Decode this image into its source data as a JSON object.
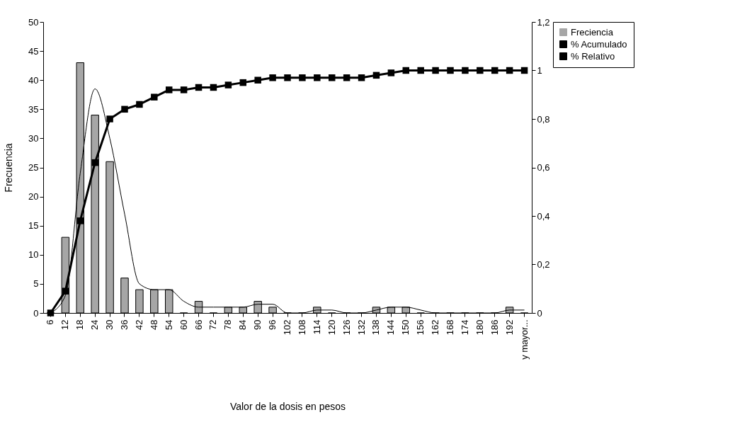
{
  "chart_data": {
    "type": "bar",
    "xlabel": "Valor de la dosis en pesos",
    "ylabel": "Frecuencia",
    "categories": [
      "6",
      "12",
      "18",
      "24",
      "30",
      "36",
      "42",
      "48",
      "54",
      "60",
      "66",
      "72",
      "78",
      "84",
      "90",
      "96",
      "102",
      "108",
      "114",
      "120",
      "126",
      "132",
      "138",
      "144",
      "150",
      "156",
      "162",
      "168",
      "174",
      "180",
      "186",
      "192",
      "y mayor..."
    ],
    "series": [
      {
        "name": "Freciencia",
        "color": "#a6a6a6",
        "values": [
          0,
          13,
          43,
          34,
          26,
          6,
          4,
          4,
          4,
          0,
          2,
          0,
          1,
          1,
          2,
          1,
          0,
          0,
          1,
          0,
          0,
          0,
          1,
          1,
          1,
          0,
          0,
          0,
          0,
          0,
          0,
          1,
          0
        ]
      },
      {
        "name": "% Acumulado",
        "type": "line",
        "axis": "y2",
        "marker": "square",
        "color": "#000000",
        "values": [
          0,
          0.09,
          0.38,
          0.62,
          0.8,
          0.84,
          0.86,
          0.89,
          0.92,
          0.92,
          0.93,
          0.93,
          0.94,
          0.95,
          0.96,
          0.97,
          0.97,
          0.97,
          0.97,
          0.97,
          0.97,
          0.97,
          0.98,
          0.99,
          1,
          1,
          1,
          1,
          1,
          1,
          1,
          1,
          1
        ]
      },
      {
        "name": "% Relativo",
        "type": "line",
        "marker": "none",
        "color": "#000000",
        "values": [
          0,
          3,
          24,
          38.5,
          30,
          17,
          5,
          4,
          4,
          2,
          1,
          1,
          1,
          1,
          1.5,
          1.5,
          0,
          0,
          0.5,
          0.5,
          0,
          0,
          0.5,
          1,
          1,
          0.5,
          0,
          0,
          0,
          0,
          0,
          0.5,
          0.5
        ]
      }
    ],
    "ylim": [
      0,
      50
    ],
    "yticks": [
      0,
      5,
      10,
      15,
      20,
      25,
      30,
      35,
      40,
      45,
      50
    ],
    "y2lim": [
      0,
      1.2
    ],
    "y2ticks": [
      0,
      {
        "value": 0.2,
        "label": "0,2"
      },
      {
        "value": 0.4,
        "label": "0,4"
      },
      {
        "value": 0.6,
        "label": "0,6"
      },
      {
        "value": 0.8,
        "label": "0,8"
      },
      1,
      {
        "value": 1.2,
        "label": "1,2"
      }
    ],
    "grid": false,
    "legend": "right"
  }
}
